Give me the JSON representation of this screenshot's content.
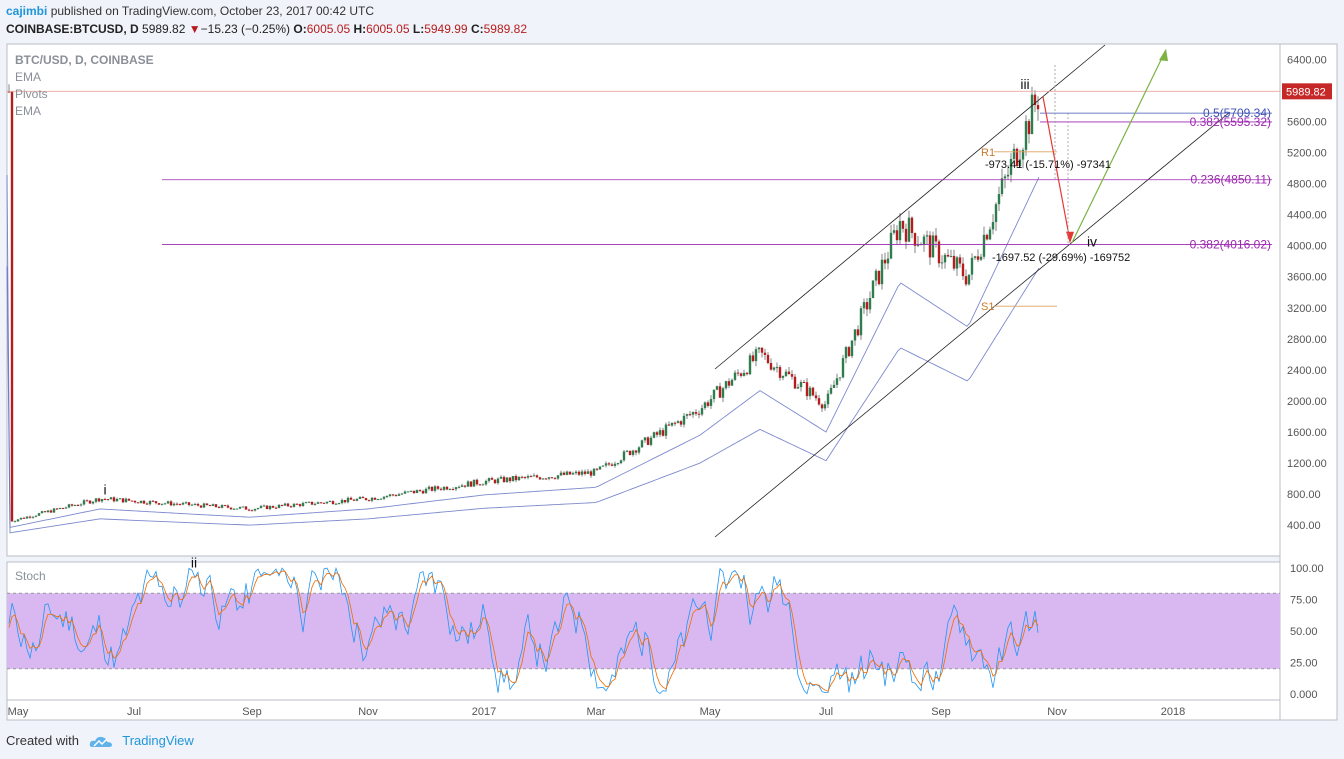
{
  "header": {
    "author": "cajimbi",
    "published_text": "published on TradingView.com, October 23, 2017 00:42 UTC",
    "symbol_line": {
      "symbol": "COINBASE:BTCUSD, D",
      "last": "5989.82",
      "change": "−15.23 (−0.25%)",
      "open_label": "O:",
      "open": "6005.05",
      "high_label": "H:",
      "high": "6005.05",
      "low_label": "L:",
      "low": "5949.99",
      "close_label": "C:",
      "close": "5989.82"
    }
  },
  "legend": [
    "BTC/USD, D, COINBASE",
    "EMA",
    "Pivots",
    "EMA"
  ],
  "oscillator_label": "Stoch",
  "footer": {
    "created_with": "Created with",
    "brand": "TradingView"
  },
  "colors": {
    "up": "#2e7d4f",
    "down": "#b71c1c",
    "fib": "#9c27b0",
    "ema": "#5c6bc0",
    "channel": "#222222",
    "stoch_band": "#d9b8f2",
    "price_tag": "#c62828"
  },
  "chart_data": {
    "type": "candlestick",
    "y_axis": {
      "min": 0,
      "max": 6600,
      "ticks": [
        400,
        800,
        1200,
        1600,
        2000,
        2400,
        2800,
        3200,
        3600,
        4000,
        4400,
        4800,
        5200,
        5600,
        6000,
        6400
      ]
    },
    "x_axis": {
      "labels": [
        "May",
        "Jul",
        "Sep",
        "Nov",
        "2017",
        "Mar",
        "May",
        "Jul",
        "Sep",
        "Nov",
        "2018"
      ]
    },
    "last_price": "5989.82",
    "fib_levels": [
      {
        "label": "0.5(5709.34)",
        "value": 5709.34,
        "color": "#3f51b5"
      },
      {
        "label": "0.382(5595.32)",
        "value": 5595.32,
        "color": "#9c27b0"
      },
      {
        "label": "0.236(4850.11)",
        "value": 4850.11,
        "color": "#9c27b0"
      },
      {
        "label": "0.382(4016.02)",
        "value": 4016.02,
        "color": "#9c27b0"
      }
    ],
    "pivots": [
      {
        "label": "R1",
        "value": 5210
      },
      {
        "label": "S1",
        "value": 3220
      }
    ],
    "wave_labels": [
      "i",
      "ii",
      "iii",
      "iv"
    ],
    "measurements": [
      "-973.41 (-15.71%) -97341",
      "-1697.52 (-29.69%) -169752"
    ],
    "key_prices": [
      {
        "x": "May 2016",
        "close": 450
      },
      {
        "x": "Jun 2016",
        "close": 740
      },
      {
        "x": "Jul 2016",
        "close": 660
      },
      {
        "x": "Sep 2016",
        "close": 610
      },
      {
        "x": "Nov 2016",
        "close": 740
      },
      {
        "x": "Jan 2017",
        "close": 960
      },
      {
        "x": "Mar 2017",
        "close": 1080
      },
      {
        "x": "May 2017",
        "close": 1900
      },
      {
        "x": "Jun 2017",
        "close": 2600
      },
      {
        "x": "Jul 2017",
        "close": 1950
      },
      {
        "x": "Aug 2017",
        "close": 4300
      },
      {
        "x": "Sep 2017",
        "close": 3600
      },
      {
        "x": "Oct 2017",
        "close": 5989.82
      }
    ],
    "stoch": {
      "min": 0,
      "max": 100,
      "upper": 80,
      "lower": 20,
      "ticks": [
        "100.00",
        "75.00",
        "50.00",
        "25.00",
        "0.000"
      ]
    }
  }
}
